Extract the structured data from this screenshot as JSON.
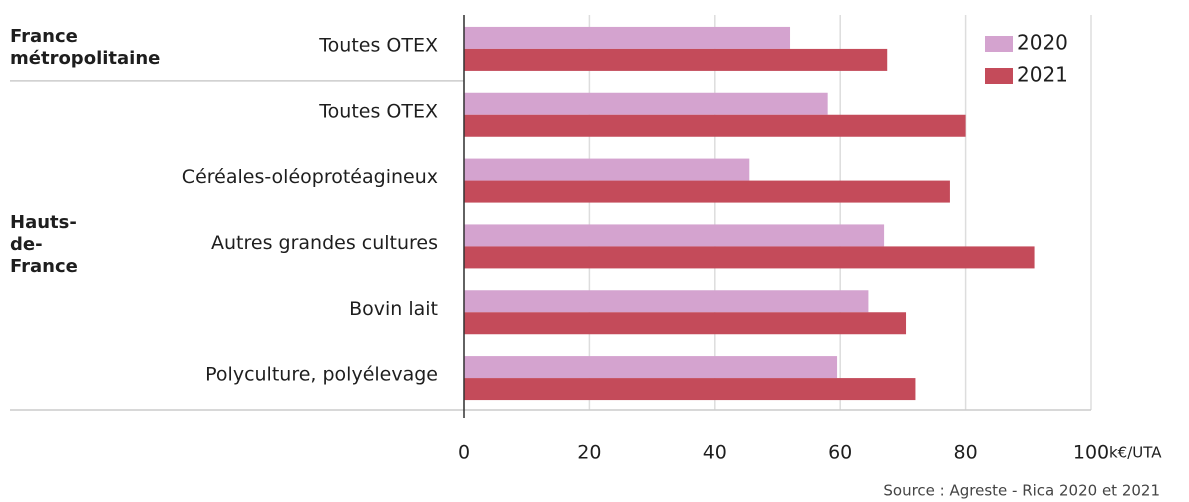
{
  "chart_data": {
    "type": "hbar",
    "categories": [
      "Toutes OTEX",
      "Toutes OTEX",
      "Céréales-oléoprotéagineux",
      "Autres grandes cultures",
      "Bovin lait",
      "Polyculture, polyélevage"
    ],
    "groups": [
      {
        "label": "France métropolitaine",
        "rows": 1
      },
      {
        "label": "Hauts-de-France",
        "rows": 5
      }
    ],
    "series": [
      {
        "name": "2020",
        "color": "#d4a3cf",
        "values": [
          52,
          58,
          45.5,
          67,
          64.5,
          59.5
        ]
      },
      {
        "name": "2021",
        "color": "#c44b5a",
        "values": [
          67.5,
          80,
          77.5,
          91,
          70.5,
          72
        ]
      }
    ],
    "xlim": [
      0,
      100
    ],
    "xticks": [
      0,
      20,
      40,
      60,
      80,
      100
    ],
    "x_label": "k€/UTA",
    "grid": true,
    "legend": "top-right",
    "source": "Source : Agreste - Rica 2020 et 2021"
  }
}
